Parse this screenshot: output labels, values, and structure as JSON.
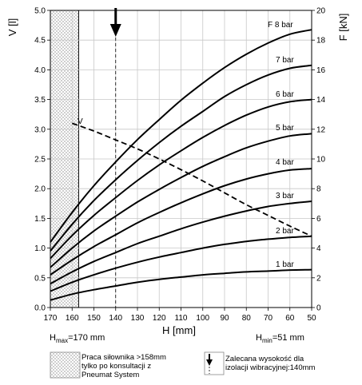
{
  "chart_data": {
    "type": "line",
    "x": {
      "label": "H [mm]",
      "range": [
        170,
        50
      ],
      "ticks": [
        170,
        160,
        150,
        140,
        130,
        120,
        110,
        100,
        90,
        80,
        70,
        60,
        50
      ]
    },
    "y_left": {
      "label": "V [l]",
      "range": [
        0,
        5
      ],
      "ticks": [
        "0.0",
        "0.5",
        "1.0",
        "1.5",
        "2.0",
        "2.5",
        "3.0",
        "3.5",
        "4.0",
        "4.5",
        "5.0"
      ]
    },
    "y_right": {
      "label": "F [kN]",
      "range": [
        0,
        20
      ],
      "ticks": [
        0,
        2,
        4,
        6,
        8,
        10,
        12,
        14,
        16,
        18,
        20
      ]
    },
    "grid": true,
    "series": [
      {
        "name": "1 bar",
        "axis": "right",
        "x": [
          170,
          160,
          150,
          140,
          130,
          120,
          110,
          100,
          90,
          80,
          70,
          60,
          50
        ],
        "y": [
          0.5,
          0.9,
          1.2,
          1.45,
          1.7,
          1.9,
          2.05,
          2.2,
          2.3,
          2.4,
          2.45,
          2.52,
          2.55
        ]
      },
      {
        "name": "2 bar",
        "axis": "right",
        "x": [
          170,
          160,
          150,
          140,
          130,
          120,
          110,
          100,
          90,
          80,
          70,
          60,
          50
        ],
        "y": [
          1.1,
          1.7,
          2.2,
          2.65,
          3.05,
          3.4,
          3.7,
          4.0,
          4.25,
          4.45,
          4.6,
          4.72,
          4.8
        ]
      },
      {
        "name": "3 bar",
        "axis": "right",
        "x": [
          170,
          160,
          150,
          140,
          130,
          120,
          110,
          100,
          90,
          80,
          70,
          60,
          50
        ],
        "y": [
          1.6,
          2.4,
          3.1,
          3.7,
          4.3,
          4.8,
          5.3,
          5.75,
          6.15,
          6.5,
          6.8,
          7.0,
          7.15
        ]
      },
      {
        "name": "4 bar",
        "axis": "right",
        "x": [
          170,
          160,
          150,
          140,
          130,
          120,
          110,
          100,
          90,
          80,
          70,
          60,
          50
        ],
        "y": [
          2.2,
          3.2,
          4.1,
          4.9,
          5.7,
          6.4,
          7.05,
          7.65,
          8.2,
          8.65,
          9.0,
          9.25,
          9.35
        ]
      },
      {
        "name": "5 bar",
        "axis": "right",
        "x": [
          170,
          160,
          150,
          140,
          130,
          120,
          110,
          100,
          90,
          80,
          70,
          60,
          50
        ],
        "y": [
          2.7,
          4.0,
          5.15,
          6.15,
          7.1,
          7.95,
          8.75,
          9.5,
          10.15,
          10.75,
          11.2,
          11.55,
          11.7
        ]
      },
      {
        "name": "6 bar",
        "axis": "right",
        "x": [
          170,
          160,
          150,
          140,
          130,
          120,
          110,
          100,
          90,
          80,
          70,
          60,
          50
        ],
        "y": [
          3.3,
          4.85,
          6.2,
          7.4,
          8.55,
          9.6,
          10.55,
          11.45,
          12.25,
          12.95,
          13.5,
          13.85,
          14.0
        ]
      },
      {
        "name": "7 bar",
        "axis": "right",
        "x": [
          170,
          160,
          150,
          140,
          130,
          120,
          110,
          100,
          90,
          80,
          70,
          60,
          50
        ],
        "y": [
          3.8,
          5.6,
          7.2,
          8.6,
          9.9,
          11.1,
          12.2,
          13.2,
          14.2,
          15.0,
          15.65,
          16.1,
          16.3
        ]
      },
      {
        "name": "F 8 bar",
        "axis": "right",
        "x": [
          170,
          160,
          150,
          140,
          130,
          120,
          110,
          100,
          90,
          80,
          70,
          60,
          50
        ],
        "y": [
          4.4,
          6.4,
          8.2,
          9.8,
          11.3,
          12.65,
          13.95,
          15.1,
          16.15,
          17.05,
          17.8,
          18.4,
          18.7
        ]
      },
      {
        "name": "V",
        "axis": "left",
        "style": "dashed",
        "x": [
          160,
          150,
          140,
          130,
          120,
          110,
          100,
          90,
          80,
          70,
          60,
          50
        ],
        "y": [
          3.1,
          2.97,
          2.82,
          2.67,
          2.5,
          2.32,
          2.13,
          1.93,
          1.73,
          1.55,
          1.37,
          1.2
        ]
      }
    ],
    "hmax_label": "=170 mm",
    "hmin_label": "=51 mm",
    "hmax_prefix": "H",
    "hmax_sub": "max",
    "hmin_prefix": "H",
    "hmin_sub": "min",
    "recommended_height_x": 140
  },
  "colors": {
    "curves": "#000000",
    "grid": "#c8c8c8",
    "hatch_region": "#d9d9d9",
    "arrow": "#000000"
  },
  "legend": {
    "hatch_text": [
      "Praca siłownika >158mm",
      "tylko po konsultacji z",
      "Pneumat System"
    ],
    "arrow_text": [
      "Zalecana wysokość dla",
      "izolacji wibracyjnej:140mm"
    ]
  }
}
